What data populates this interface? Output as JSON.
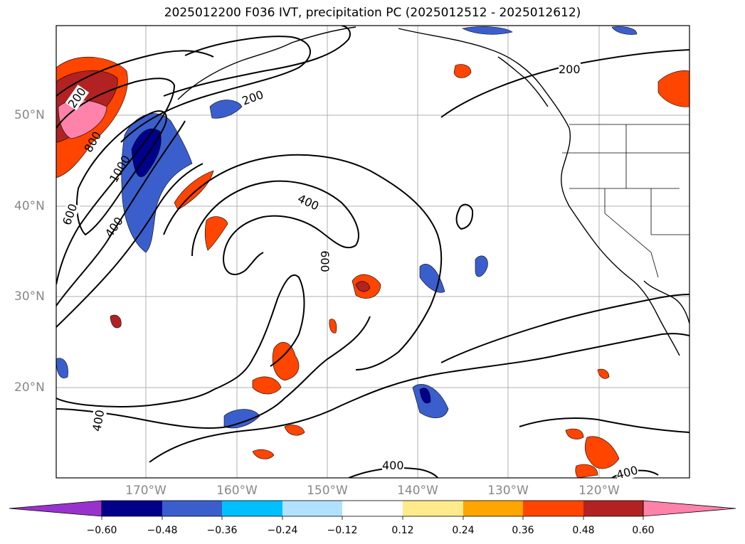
{
  "title": "2025012200 F036 IVT, precipitation PC (2025012512 - 2025012612)",
  "latitude_labels": [
    "50°N",
    "40°N",
    "30°N",
    "20°N"
  ],
  "longitude_labels": [
    "170°W",
    "160°W",
    "150°W",
    "140°W",
    "130°W",
    "120°W"
  ],
  "contour_labels": [
    "200",
    "200",
    "200",
    "800",
    "1000",
    "600",
    "400",
    "400",
    "600",
    "400",
    "400",
    "400"
  ],
  "colorbar": {
    "tick_labels": [
      "−0.60",
      "−0.48",
      "−0.36",
      "−0.24",
      "−0.12",
      "0.12",
      "0.24",
      "0.36",
      "0.48",
      "0.60"
    ],
    "colors": [
      "#9932cc",
      "#00008b",
      "#3a5fcd",
      "#00bfff",
      "#b0e2ff",
      "#ffffff",
      "#ffeb8c",
      "#ffa500",
      "#ff4500",
      "#b22222",
      "#ff82ab"
    ]
  },
  "colors": {
    "land_ocean": "#ffffff",
    "coastline": "#000000",
    "gridline": "#b0b0b0",
    "axis_label": "#888888"
  }
}
